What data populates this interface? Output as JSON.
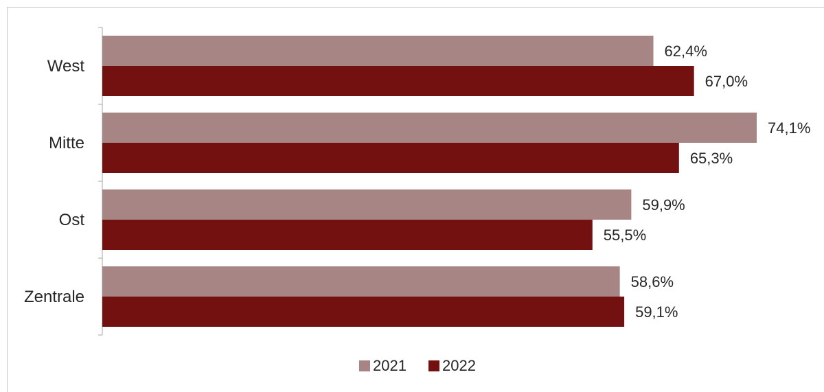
{
  "chart_data": {
    "type": "bar",
    "orientation": "horizontal",
    "categories": [
      "West",
      "Mitte",
      "Ost",
      "Zentrale"
    ],
    "series": [
      {
        "name": "2021",
        "values": [
          62.4,
          74.1,
          59.9,
          58.6
        ],
        "labels": [
          "62,4%",
          "74,1%",
          "59,9%",
          "58,6%"
        ],
        "color": "#a88585"
      },
      {
        "name": "2022",
        "values": [
          67.0,
          65.3,
          55.5,
          59.1
        ],
        "labels": [
          "67,0%",
          "65,3%",
          "55,5%",
          "59,1%"
        ],
        "color": "#731010"
      }
    ],
    "unit": "%",
    "xlim": [
      0,
      80
    ],
    "grid": false,
    "legend_position": "bottom"
  }
}
